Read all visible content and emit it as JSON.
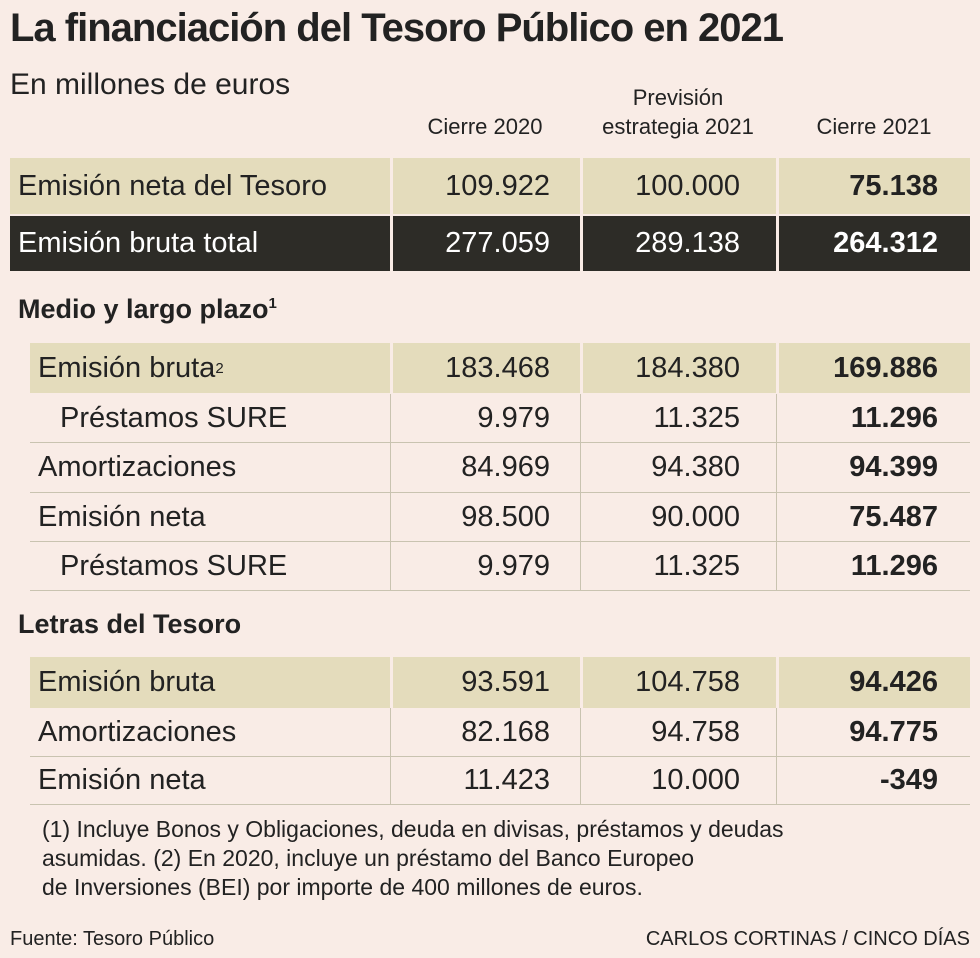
{
  "chart_data": {
    "type": "table",
    "title": "La financiación del Tesoro Público en 2021",
    "subtitle": "En millones de euros",
    "columns": [
      "Cierre 2020",
      "Previsión estrategia 2021",
      "Cierre 2021"
    ],
    "column_lines": {
      "c1": "Cierre 2020",
      "c2_line1": "Previsión",
      "c2_line2": "estrategia 2021",
      "c3": "Cierre 2021"
    },
    "summary_rows": [
      {
        "label": "Emisión neta del Tesoro",
        "values": [
          "109.922",
          "100.000",
          "75.138"
        ]
      },
      {
        "label": "Emisión bruta total",
        "values": [
          "277.059",
          "289.138",
          "264.312"
        ]
      }
    ],
    "sections": [
      {
        "name": "Medio y largo plazo",
        "footnote": "1",
        "rows": [
          {
            "label": "Emisión bruta",
            "footnote": "2",
            "values": [
              "183.468",
              "184.380",
              "169.886"
            ]
          },
          {
            "label": "Préstamos SURE",
            "values": [
              "9.979",
              "11.325",
              "11.296"
            ]
          },
          {
            "label": "Amortizaciones",
            "values": [
              "84.969",
              "94.380",
              "94.399"
            ]
          },
          {
            "label": "Emisión neta",
            "values": [
              "98.500",
              "90.000",
              "75.487"
            ]
          },
          {
            "label": "Préstamos SURE",
            "values": [
              "9.979",
              "11.325",
              "11.296"
            ]
          }
        ]
      },
      {
        "name": "Letras del Tesoro",
        "rows": [
          {
            "label": "Emisión bruta",
            "values": [
              "93.591",
              "104.758",
              "94.426"
            ]
          },
          {
            "label": "Amortizaciones",
            "values": [
              "82.168",
              "94.758",
              "94.775"
            ]
          },
          {
            "label": "Emisión neta",
            "values": [
              "11.423",
              "10.000",
              "-349"
            ]
          }
        ]
      }
    ],
    "notes": {
      "line1": "(1) Incluye Bonos y Obligaciones, deuda en divisas, préstamos y deudas",
      "line2": "asumidas. (2) En 2020, incluye un préstamo del Banco Europeo",
      "line3": "de Inversiones (BEI) por importe de 400 millones de euros."
    },
    "source": "Fuente: Tesoro Público",
    "credit": "CARLOS CORTINAS / CINCO DÍAS"
  },
  "colors": {
    "background": "#f9ece6",
    "tan_row": "#e4dcbc",
    "dark_row": "#2d2c27"
  }
}
